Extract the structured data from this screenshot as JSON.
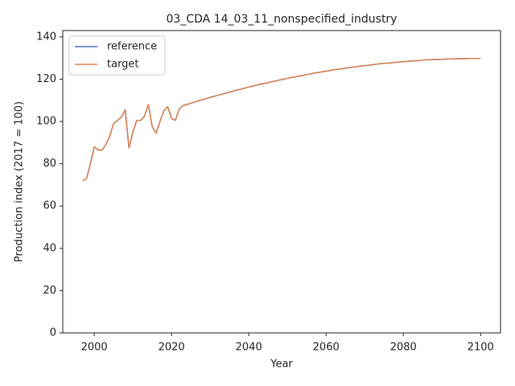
{
  "chart_data": {
    "type": "line",
    "title": "03_CDA 14_03_11_nonspecified_industry",
    "x_label": "Year",
    "y_label": "Production index (2017 = 100)",
    "x": [
      1997,
      1998,
      1999,
      2000,
      2001,
      2002,
      2003,
      2004,
      2005,
      2006,
      2007,
      2008,
      2009,
      2010,
      2011,
      2012,
      2013,
      2014,
      2015,
      2016,
      2017,
      2018,
      2019,
      2020,
      2021,
      2022,
      2023,
      2024,
      2025,
      2026,
      2027,
      2028,
      2029,
      2030,
      2031,
      2032,
      2033,
      2034,
      2035,
      2036,
      2037,
      2038,
      2039,
      2040,
      2041,
      2042,
      2043,
      2044,
      2045,
      2046,
      2047,
      2048,
      2049,
      2050,
      2051,
      2052,
      2053,
      2054,
      2055,
      2056,
      2057,
      2058,
      2059,
      2060,
      2061,
      2062,
      2063,
      2064,
      2065,
      2066,
      2067,
      2068,
      2069,
      2070,
      2071,
      2072,
      2073,
      2074,
      2075,
      2076,
      2077,
      2078,
      2079,
      2080,
      2081,
      2082,
      2083,
      2084,
      2085,
      2086,
      2087,
      2088,
      2089,
      2090,
      2091,
      2092,
      2093,
      2094,
      2095,
      2096,
      2097,
      2098,
      2099,
      2100
    ],
    "series": [
      {
        "name": "reference",
        "color": "#4c72b0",
        "values": [
          72,
          73,
          80,
          88,
          86.5,
          86.5,
          89,
          93,
          99,
          100.5,
          102,
          105.5,
          87.5,
          95,
          100.5,
          100.5,
          102.5,
          108,
          97.5,
          94.5,
          100,
          105,
          107,
          101.5,
          100.5,
          106,
          107.5,
          108.1,
          108.6,
          109.2,
          109.8,
          110.3,
          110.8,
          111.4,
          111.9,
          112.4,
          112.9,
          113.4,
          113.9,
          114.4,
          114.9,
          115.3,
          115.8,
          116.3,
          116.7,
          117.2,
          117.6,
          118.0,
          118.4,
          118.8,
          119.2,
          119.6,
          120.0,
          120.4,
          120.8,
          121.1,
          121.5,
          121.8,
          122.2,
          122.5,
          122.9,
          123.2,
          123.5,
          123.8,
          124.1,
          124.4,
          124.7,
          124.9,
          125.2,
          125.5,
          125.7,
          126.0,
          126.2,
          126.4,
          126.6,
          126.9,
          127.1,
          127.3,
          127.5,
          127.6,
          127.8,
          128.0,
          128.1,
          128.3,
          128.4,
          128.6,
          128.7,
          128.8,
          129.0,
          129.1,
          129.2,
          129.3,
          129.3,
          129.4,
          129.5,
          129.6,
          129.6,
          129.7,
          129.7,
          129.7,
          129.8,
          129.8,
          129.8,
          129.8
        ]
      },
      {
        "name": "target",
        "color": "#dd8452",
        "values": [
          72,
          73,
          80,
          88,
          86.5,
          86.5,
          89,
          93,
          99,
          100.5,
          102,
          105.5,
          87.5,
          95,
          100.5,
          100.5,
          102.5,
          108,
          97.5,
          94.5,
          100,
          105,
          107,
          101.5,
          100.5,
          106,
          107.5,
          108.1,
          108.6,
          109.2,
          109.8,
          110.3,
          110.8,
          111.4,
          111.9,
          112.4,
          112.9,
          113.4,
          113.9,
          114.4,
          114.9,
          115.3,
          115.8,
          116.3,
          116.7,
          117.2,
          117.6,
          118.0,
          118.4,
          118.8,
          119.2,
          119.6,
          120.0,
          120.4,
          120.8,
          121.1,
          121.5,
          121.8,
          122.2,
          122.5,
          122.9,
          123.2,
          123.5,
          123.8,
          124.1,
          124.4,
          124.7,
          124.9,
          125.2,
          125.5,
          125.7,
          126.0,
          126.2,
          126.4,
          126.6,
          126.9,
          127.1,
          127.3,
          127.5,
          127.6,
          127.8,
          128.0,
          128.1,
          128.3,
          128.4,
          128.6,
          128.7,
          128.8,
          129.0,
          129.1,
          129.2,
          129.3,
          129.3,
          129.4,
          129.5,
          129.6,
          129.6,
          129.7,
          129.7,
          129.7,
          129.8,
          129.8,
          129.8,
          129.8
        ]
      }
    ],
    "xlim": [
      1991.85,
      2105.15
    ],
    "ylim": [
      0,
      143
    ],
    "xticks": [
      2000,
      2020,
      2040,
      2060,
      2080,
      2100
    ],
    "yticks": [
      0,
      20,
      40,
      60,
      80,
      100,
      120,
      140
    ],
    "legend": "upper left"
  }
}
